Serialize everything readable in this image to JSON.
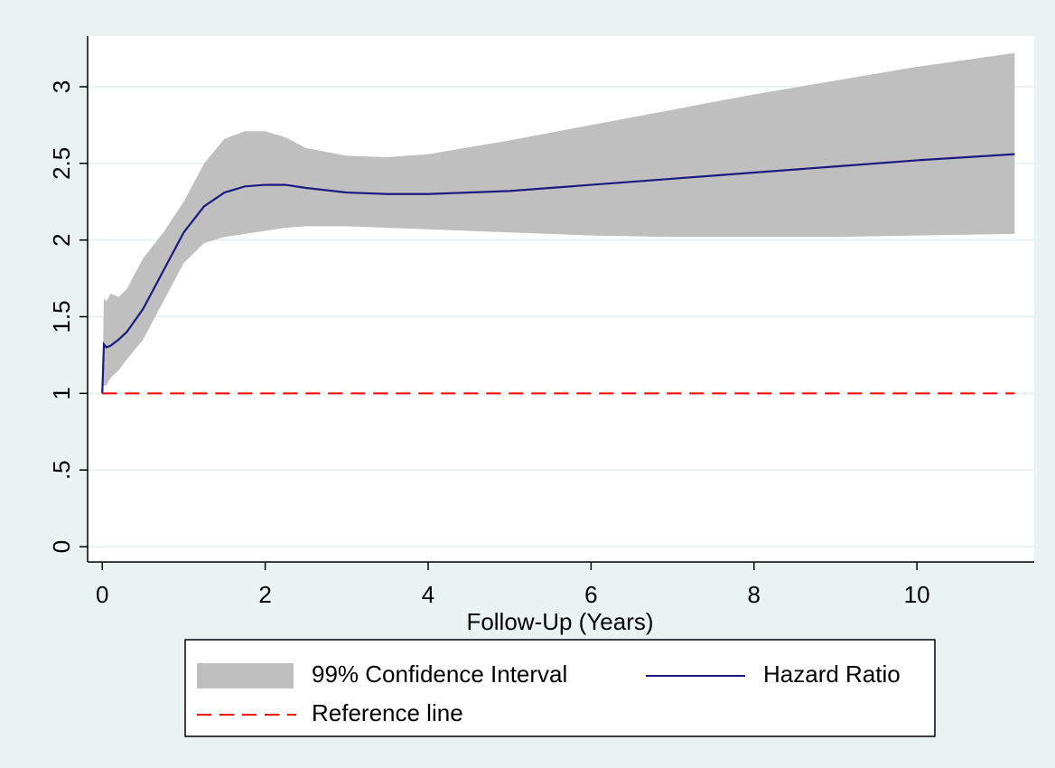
{
  "chart_data": {
    "type": "line",
    "x_label": "Follow-Up (Years)",
    "x": [
      0,
      0.02,
      0.05,
      0.1,
      0.2,
      0.3,
      0.5,
      0.75,
      1,
      1.25,
      1.5,
      1.75,
      2,
      2.25,
      2.5,
      3,
      3.5,
      4,
      5,
      6,
      7,
      8,
      9,
      10,
      11.2
    ],
    "series": [
      {
        "name": "99% Confidence Interval",
        "color": "#bfbfbf",
        "kind": "band",
        "lower": [
          1.0,
          1.05,
          1.05,
          1.1,
          1.15,
          1.22,
          1.35,
          1.6,
          1.85,
          1.98,
          2.02,
          2.04,
          2.06,
          2.08,
          2.09,
          2.09,
          2.08,
          2.07,
          2.05,
          2.03,
          2.02,
          2.02,
          2.02,
          2.03,
          2.04
        ],
        "upper": [
          1.0,
          1.62,
          1.6,
          1.65,
          1.63,
          1.68,
          1.88,
          2.05,
          2.25,
          2.5,
          2.66,
          2.71,
          2.71,
          2.67,
          2.6,
          2.55,
          2.54,
          2.56,
          2.65,
          2.75,
          2.85,
          2.95,
          3.04,
          3.13,
          3.22
        ]
      },
      {
        "name": "Hazard Ratio",
        "color": "#1a1a80",
        "kind": "line",
        "values": [
          1.0,
          1.32,
          1.3,
          1.31,
          1.35,
          1.4,
          1.55,
          1.8,
          2.05,
          2.22,
          2.31,
          2.35,
          2.36,
          2.36,
          2.34,
          2.31,
          2.3,
          2.3,
          2.32,
          2.36,
          2.4,
          2.44,
          2.48,
          2.52,
          2.56
        ]
      },
      {
        "name": "Reference line",
        "color": "#ff0000",
        "kind": "dashed",
        "values": [
          1,
          1,
          1,
          1,
          1,
          1,
          1,
          1,
          1,
          1,
          1,
          1,
          1,
          1,
          1,
          1,
          1,
          1,
          1,
          1,
          1,
          1,
          1,
          1,
          1
        ]
      }
    ],
    "xlim": [
      -0.18,
      11.44
    ],
    "xticks": [
      0,
      2,
      4,
      6,
      8,
      10
    ],
    "ylim": [
      -0.1,
      3.33
    ],
    "yticks": [
      0,
      {
        "value": 0.5,
        "label": ".5"
      },
      1,
      1.5,
      2,
      2.5,
      3
    ],
    "grid": true
  }
}
